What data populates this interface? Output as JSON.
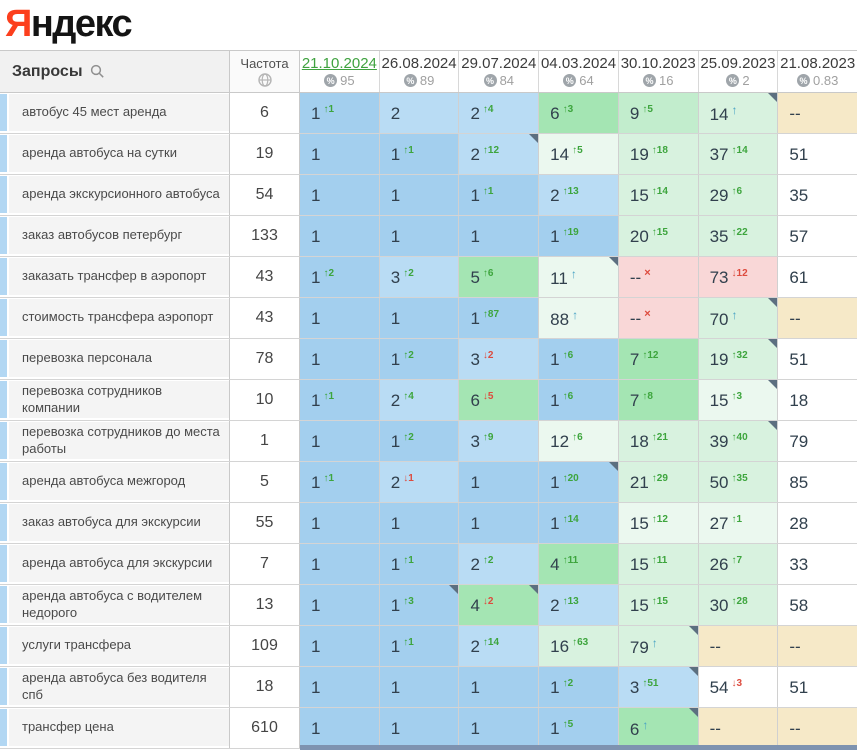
{
  "brand": {
    "logo_prefix": "Я",
    "logo_suffix": "ндекс"
  },
  "colors": {
    "b1": "#a3cfee",
    "b2": "#b9dcf4",
    "g1": "#a4e5b3",
    "g2": "#c2edcd",
    "g3": "#d8f2df",
    "g4": "#ebf8ef",
    "w": "#ffffff",
    "tan": "#f6e9c8",
    "pink": "#f9d7d7",
    "brand_red": "#fc3f1d",
    "selected_date": "#3fa23f",
    "up_change": "#3da53d",
    "down_change": "#dd4b3e",
    "in_arrow": "#48a3c4",
    "note_corner": "#5c6f80",
    "scrollbar": "#7e93b0",
    "query_strip": "#b2d7f3"
  },
  "table": {
    "queries_header": "Запросы",
    "frequency_header": "Частота",
    "dates": [
      {
        "label": "21.10.2024",
        "pct": "95",
        "selected": true
      },
      {
        "label": "26.08.2024",
        "pct": "89",
        "selected": false
      },
      {
        "label": "29.07.2024",
        "pct": "84",
        "selected": false
      },
      {
        "label": "04.03.2024",
        "pct": "64",
        "selected": false
      },
      {
        "label": "30.10.2023",
        "pct": "16",
        "selected": false
      },
      {
        "label": "25.09.2023",
        "pct": "2",
        "selected": false
      },
      {
        "label": "21.08.2023",
        "pct": "0.83",
        "selected": false
      }
    ],
    "rows": [
      {
        "query": "автобус 45 мест аренда",
        "freq": "6",
        "cells": [
          {
            "v": "1",
            "d": "up",
            "c": "1",
            "bg": "b1"
          },
          {
            "v": "2",
            "d": "",
            "c": "",
            "bg": "b2"
          },
          {
            "v": "2",
            "d": "up",
            "c": "4",
            "bg": "b2"
          },
          {
            "v": "6",
            "d": "up",
            "c": "3",
            "bg": "g1"
          },
          {
            "v": "9",
            "d": "up",
            "c": "5",
            "bg": "g2"
          },
          {
            "v": "14",
            "d": "in",
            "c": "",
            "bg": "g3",
            "k": true
          },
          {
            "v": "--",
            "d": "",
            "c": "",
            "bg": "tan"
          }
        ]
      },
      {
        "query": "аренда автобуса на сутки",
        "freq": "19",
        "cells": [
          {
            "v": "1",
            "d": "",
            "c": "",
            "bg": "b1"
          },
          {
            "v": "1",
            "d": "up",
            "c": "1",
            "bg": "b1"
          },
          {
            "v": "2",
            "d": "up",
            "c": "12",
            "bg": "b2",
            "k": true
          },
          {
            "v": "14",
            "d": "up",
            "c": "5",
            "bg": "g4"
          },
          {
            "v": "19",
            "d": "up",
            "c": "18",
            "bg": "g3"
          },
          {
            "v": "37",
            "d": "up",
            "c": "14",
            "bg": "g3"
          },
          {
            "v": "51",
            "d": "",
            "c": "",
            "bg": "w"
          }
        ]
      },
      {
        "query": "аренда экскурсионного автобуса",
        "freq": "54",
        "cells": [
          {
            "v": "1",
            "d": "",
            "c": "",
            "bg": "b1"
          },
          {
            "v": "1",
            "d": "",
            "c": "",
            "bg": "b1"
          },
          {
            "v": "1",
            "d": "up",
            "c": "1",
            "bg": "b1"
          },
          {
            "v": "2",
            "d": "up",
            "c": "13",
            "bg": "b2"
          },
          {
            "v": "15",
            "d": "up",
            "c": "14",
            "bg": "g3"
          },
          {
            "v": "29",
            "d": "up",
            "c": "6",
            "bg": "g3"
          },
          {
            "v": "35",
            "d": "",
            "c": "",
            "bg": "w"
          }
        ]
      },
      {
        "query": "заказ автобусов петербург",
        "freq": "133",
        "cells": [
          {
            "v": "1",
            "d": "",
            "c": "",
            "bg": "b1"
          },
          {
            "v": "1",
            "d": "",
            "c": "",
            "bg": "b1"
          },
          {
            "v": "1",
            "d": "",
            "c": "",
            "bg": "b1"
          },
          {
            "v": "1",
            "d": "up",
            "c": "19",
            "bg": "b1"
          },
          {
            "v": "20",
            "d": "up",
            "c": "15",
            "bg": "g3"
          },
          {
            "v": "35",
            "d": "up",
            "c": "22",
            "bg": "g3"
          },
          {
            "v": "57",
            "d": "",
            "c": "",
            "bg": "w"
          }
        ]
      },
      {
        "query": "заказать трансфер в аэропорт",
        "freq": "43",
        "cells": [
          {
            "v": "1",
            "d": "up",
            "c": "2",
            "bg": "b1"
          },
          {
            "v": "3",
            "d": "up",
            "c": "2",
            "bg": "b2"
          },
          {
            "v": "5",
            "d": "up",
            "c": "6",
            "bg": "g1"
          },
          {
            "v": "11",
            "d": "in",
            "c": "",
            "bg": "g4",
            "k": true
          },
          {
            "v": "--",
            "d": "out",
            "c": "",
            "bg": "pink"
          },
          {
            "v": "73",
            "d": "down",
            "c": "12",
            "bg": "pink"
          },
          {
            "v": "61",
            "d": "",
            "c": "",
            "bg": "w"
          }
        ]
      },
      {
        "query": "стоимость трансфера аэропорт",
        "freq": "43",
        "cells": [
          {
            "v": "1",
            "d": "",
            "c": "",
            "bg": "b1"
          },
          {
            "v": "1",
            "d": "",
            "c": "",
            "bg": "b1"
          },
          {
            "v": "1",
            "d": "up",
            "c": "87",
            "bg": "b1"
          },
          {
            "v": "88",
            "d": "in",
            "c": "",
            "bg": "g4"
          },
          {
            "v": "--",
            "d": "out",
            "c": "",
            "bg": "pink"
          },
          {
            "v": "70",
            "d": "in",
            "c": "",
            "bg": "g3",
            "k": true
          },
          {
            "v": "--",
            "d": "",
            "c": "",
            "bg": "tan"
          }
        ]
      },
      {
        "query": "перевозка персонала",
        "freq": "78",
        "cells": [
          {
            "v": "1",
            "d": "",
            "c": "",
            "bg": "b1"
          },
          {
            "v": "1",
            "d": "up",
            "c": "2",
            "bg": "b1"
          },
          {
            "v": "3",
            "d": "down",
            "c": "2",
            "bg": "b2"
          },
          {
            "v": "1",
            "d": "up",
            "c": "6",
            "bg": "b1"
          },
          {
            "v": "7",
            "d": "up",
            "c": "12",
            "bg": "g1"
          },
          {
            "v": "19",
            "d": "up",
            "c": "32",
            "bg": "g3",
            "k": true
          },
          {
            "v": "51",
            "d": "",
            "c": "",
            "bg": "w"
          }
        ]
      },
      {
        "query": "перевозка сотрудников компании",
        "freq": "10",
        "cells": [
          {
            "v": "1",
            "d": "up",
            "c": "1",
            "bg": "b1"
          },
          {
            "v": "2",
            "d": "up",
            "c": "4",
            "bg": "b2"
          },
          {
            "v": "6",
            "d": "down",
            "c": "5",
            "bg": "g1"
          },
          {
            "v": "1",
            "d": "up",
            "c": "6",
            "bg": "b1"
          },
          {
            "v": "7",
            "d": "up",
            "c": "8",
            "bg": "g1"
          },
          {
            "v": "15",
            "d": "up",
            "c": "3",
            "bg": "g4",
            "k": true
          },
          {
            "v": "18",
            "d": "",
            "c": "",
            "bg": "w"
          }
        ]
      },
      {
        "query": "перевозка сотрудников до места работы",
        "freq": "1",
        "cells": [
          {
            "v": "1",
            "d": "",
            "c": "",
            "bg": "b1"
          },
          {
            "v": "1",
            "d": "up",
            "c": "2",
            "bg": "b1"
          },
          {
            "v": "3",
            "d": "up",
            "c": "9",
            "bg": "b2"
          },
          {
            "v": "12",
            "d": "up",
            "c": "6",
            "bg": "g4"
          },
          {
            "v": "18",
            "d": "up",
            "c": "21",
            "bg": "g3"
          },
          {
            "v": "39",
            "d": "up",
            "c": "40",
            "bg": "g3",
            "k": true
          },
          {
            "v": "79",
            "d": "",
            "c": "",
            "bg": "w"
          }
        ]
      },
      {
        "query": "аренда автобуса межгород",
        "freq": "5",
        "cells": [
          {
            "v": "1",
            "d": "up",
            "c": "1",
            "bg": "b1"
          },
          {
            "v": "2",
            "d": "down",
            "c": "1",
            "bg": "b2"
          },
          {
            "v": "1",
            "d": "",
            "c": "",
            "bg": "b1"
          },
          {
            "v": "1",
            "d": "up",
            "c": "20",
            "bg": "b1",
            "k": true
          },
          {
            "v": "21",
            "d": "up",
            "c": "29",
            "bg": "g3"
          },
          {
            "v": "50",
            "d": "up",
            "c": "35",
            "bg": "g3"
          },
          {
            "v": "85",
            "d": "",
            "c": "",
            "bg": "w"
          }
        ]
      },
      {
        "query": "заказ автобуса для экскурсии",
        "freq": "55",
        "cells": [
          {
            "v": "1",
            "d": "",
            "c": "",
            "bg": "b1"
          },
          {
            "v": "1",
            "d": "",
            "c": "",
            "bg": "b1"
          },
          {
            "v": "1",
            "d": "",
            "c": "",
            "bg": "b1"
          },
          {
            "v": "1",
            "d": "up",
            "c": "14",
            "bg": "b1"
          },
          {
            "v": "15",
            "d": "up",
            "c": "12",
            "bg": "g4"
          },
          {
            "v": "27",
            "d": "up",
            "c": "1",
            "bg": "g4"
          },
          {
            "v": "28",
            "d": "",
            "c": "",
            "bg": "w"
          }
        ]
      },
      {
        "query": "аренда автобуса для экскурсии",
        "freq": "7",
        "cells": [
          {
            "v": "1",
            "d": "",
            "c": "",
            "bg": "b1"
          },
          {
            "v": "1",
            "d": "up",
            "c": "1",
            "bg": "b1"
          },
          {
            "v": "2",
            "d": "up",
            "c": "2",
            "bg": "b2"
          },
          {
            "v": "4",
            "d": "up",
            "c": "11",
            "bg": "g1"
          },
          {
            "v": "15",
            "d": "up",
            "c": "11",
            "bg": "g3"
          },
          {
            "v": "26",
            "d": "up",
            "c": "7",
            "bg": "g3"
          },
          {
            "v": "33",
            "d": "",
            "c": "",
            "bg": "w"
          }
        ]
      },
      {
        "query": "аренда автобуса с водителем недорого",
        "freq": "13",
        "cells": [
          {
            "v": "1",
            "d": "",
            "c": "",
            "bg": "b1"
          },
          {
            "v": "1",
            "d": "up",
            "c": "3",
            "bg": "b1",
            "k": true
          },
          {
            "v": "4",
            "d": "down",
            "c": "2",
            "bg": "g1",
            "k": true
          },
          {
            "v": "2",
            "d": "up",
            "c": "13",
            "bg": "b2"
          },
          {
            "v": "15",
            "d": "up",
            "c": "15",
            "bg": "g3"
          },
          {
            "v": "30",
            "d": "up",
            "c": "28",
            "bg": "g3"
          },
          {
            "v": "58",
            "d": "",
            "c": "",
            "bg": "w"
          }
        ]
      },
      {
        "query": "услуги трансфера",
        "freq": "109",
        "cells": [
          {
            "v": "1",
            "d": "",
            "c": "",
            "bg": "b1"
          },
          {
            "v": "1",
            "d": "up",
            "c": "1",
            "bg": "b1"
          },
          {
            "v": "2",
            "d": "up",
            "c": "14",
            "bg": "b2"
          },
          {
            "v": "16",
            "d": "up",
            "c": "63",
            "bg": "g3"
          },
          {
            "v": "79",
            "d": "in",
            "c": "",
            "bg": "g3",
            "k": true
          },
          {
            "v": "--",
            "d": "",
            "c": "",
            "bg": "tan"
          },
          {
            "v": "--",
            "d": "",
            "c": "",
            "bg": "tan"
          }
        ]
      },
      {
        "query": "аренда автобуса без водителя спб",
        "freq": "18",
        "cells": [
          {
            "v": "1",
            "d": "",
            "c": "",
            "bg": "b1"
          },
          {
            "v": "1",
            "d": "",
            "c": "",
            "bg": "b1"
          },
          {
            "v": "1",
            "d": "",
            "c": "",
            "bg": "b1"
          },
          {
            "v": "1",
            "d": "up",
            "c": "2",
            "bg": "b1"
          },
          {
            "v": "3",
            "d": "up",
            "c": "51",
            "bg": "b2",
            "k": true
          },
          {
            "v": "54",
            "d": "down",
            "c": "3",
            "bg": "w"
          },
          {
            "v": "51",
            "d": "",
            "c": "",
            "bg": "w"
          }
        ]
      },
      {
        "query": "трансфер цена",
        "freq": "610",
        "cells": [
          {
            "v": "1",
            "d": "",
            "c": "",
            "bg": "b1"
          },
          {
            "v": "1",
            "d": "",
            "c": "",
            "bg": "b1"
          },
          {
            "v": "1",
            "d": "",
            "c": "",
            "bg": "b1"
          },
          {
            "v": "1",
            "d": "up",
            "c": "5",
            "bg": "b1"
          },
          {
            "v": "6",
            "d": "in",
            "c": "",
            "bg": "g1",
            "k": true
          },
          {
            "v": "--",
            "d": "",
            "c": "",
            "bg": "tan"
          },
          {
            "v": "--",
            "d": "",
            "c": "",
            "bg": "tan"
          }
        ]
      }
    ]
  }
}
